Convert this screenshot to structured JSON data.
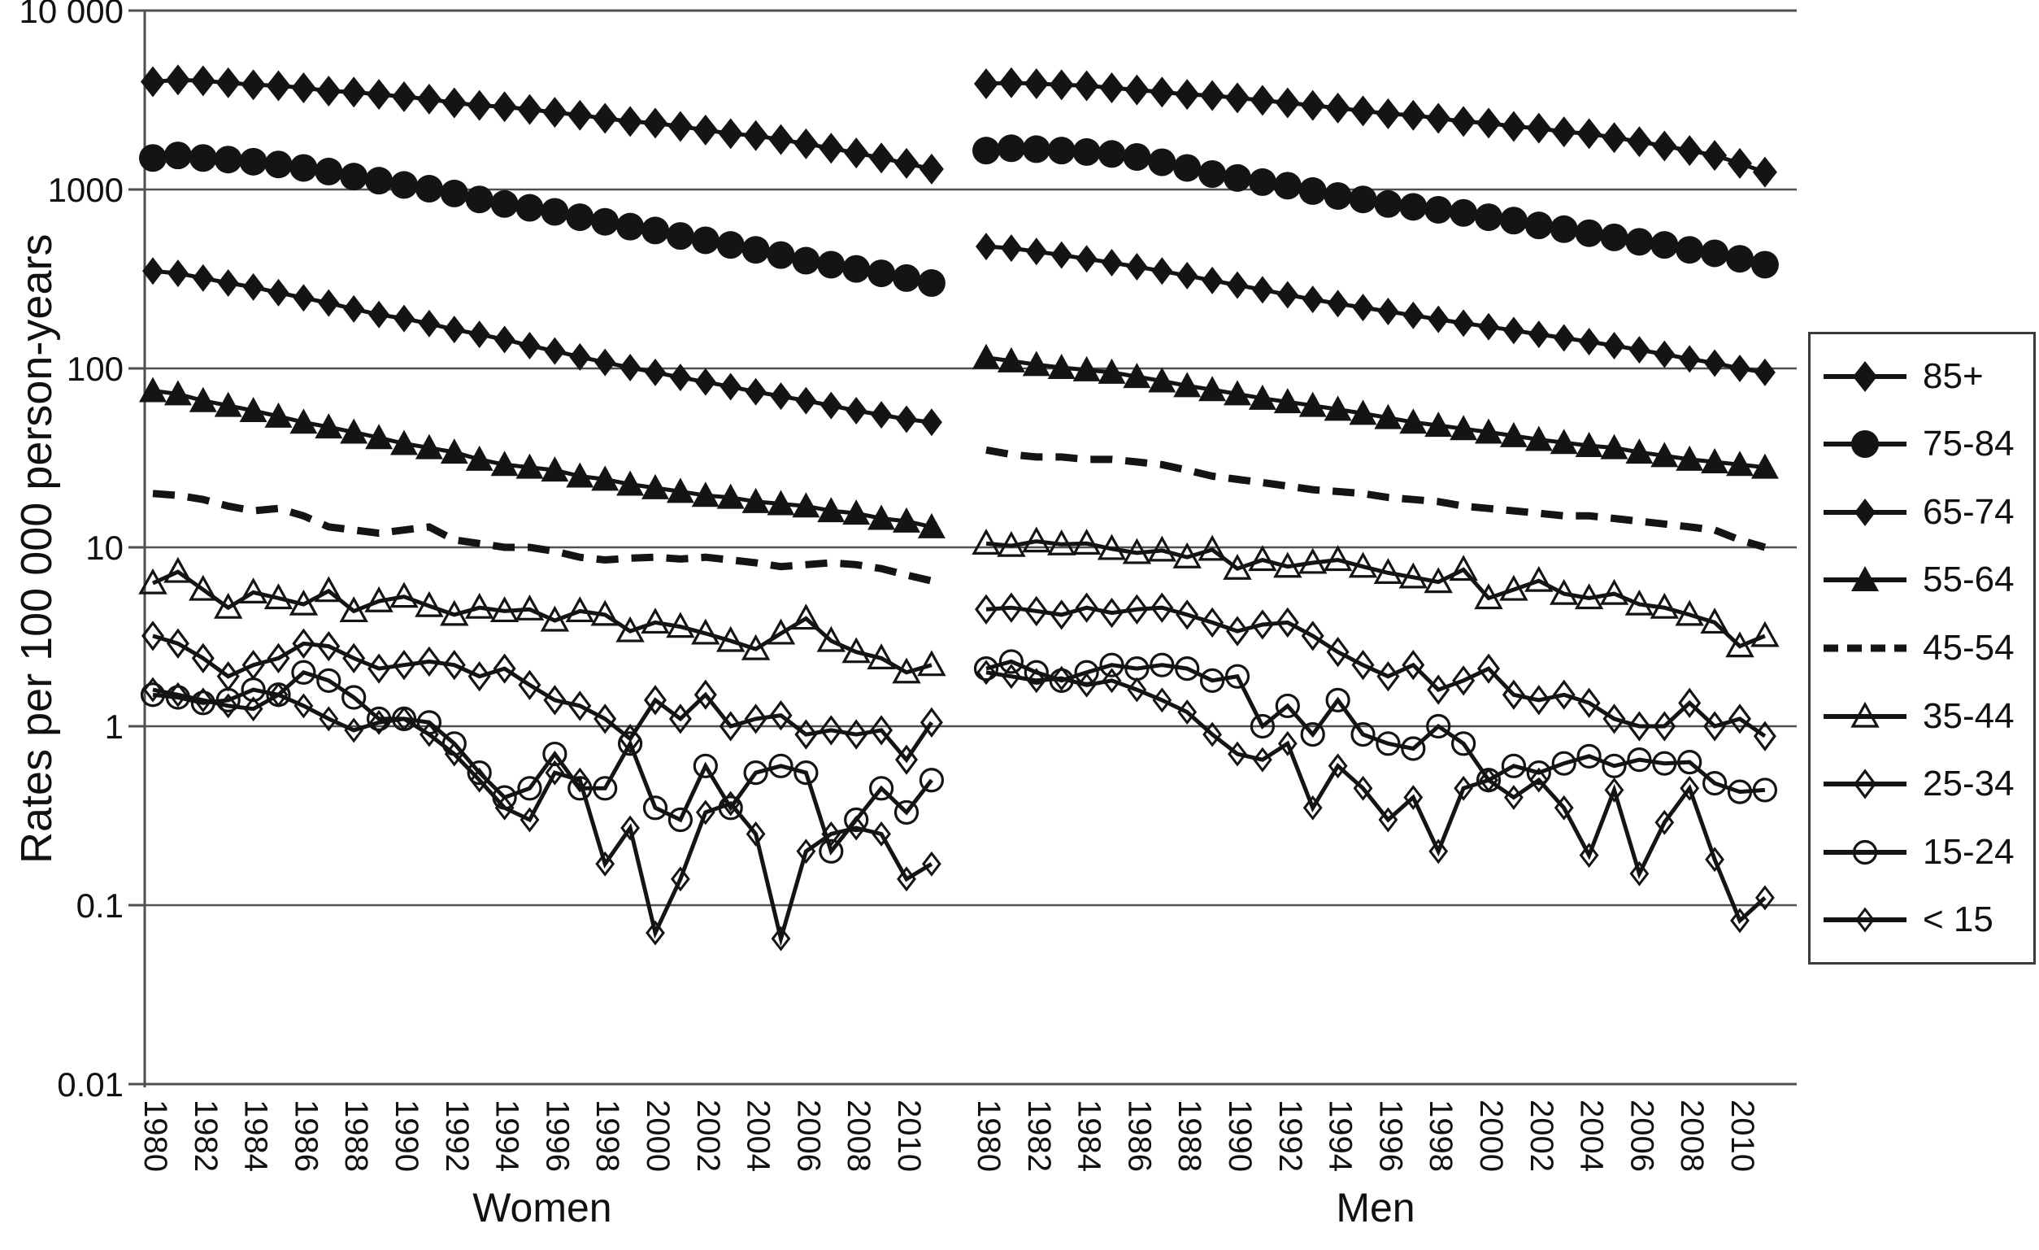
{
  "figure": {
    "type": "scientific-line-chart",
    "background": "#ffffff"
  },
  "colors": {
    "ink": "#141414",
    "grid": "#4f4f4f",
    "text": "#111111"
  },
  "legend": {
    "entries": [
      {
        "label": "85+",
        "marker": "diamond-filled"
      },
      {
        "label": "75-84",
        "marker": "circle-filled"
      },
      {
        "label": "65-74",
        "marker": "diamond-filled-small"
      },
      {
        "label": "55-64",
        "marker": "triangle-filled"
      },
      {
        "label": "45-54",
        "marker": "dashed-line"
      },
      {
        "label": "35-44",
        "marker": "triangle-open"
      },
      {
        "label": "25-34",
        "marker": "diamond-open"
      },
      {
        "label": "15-24",
        "marker": "circle-open"
      },
      {
        "label": "< 15",
        "marker": "diamond-open-small"
      }
    ]
  },
  "chart_data": {
    "type": "line",
    "yscale": "log",
    "ylabel": "Rates per 100 000 person-years",
    "ylim": [
      0.01,
      10000
    ],
    "grid": true,
    "legend_position": "right",
    "y_tick_values": [
      10000,
      1000,
      100,
      10,
      1,
      0.1,
      0.01
    ],
    "y_tick_labels": [
      "10 000",
      "1000",
      "100",
      "10",
      "1",
      "0.1",
      "0.01"
    ],
    "x": [
      1980,
      1981,
      1982,
      1983,
      1984,
      1985,
      1986,
      1987,
      1988,
      1989,
      1990,
      1991,
      1992,
      1993,
      1994,
      1995,
      1996,
      1997,
      1998,
      1999,
      2000,
      2001,
      2002,
      2003,
      2004,
      2005,
      2006,
      2007,
      2008,
      2009,
      2010,
      2011
    ],
    "x_ticks": [
      1980,
      1982,
      1984,
      1986,
      1988,
      1990,
      1992,
      1994,
      1996,
      1998,
      2000,
      2002,
      2004,
      2006,
      2008,
      2010
    ],
    "panels": [
      {
        "label": "Women",
        "series": [
          {
            "name": "85+",
            "marker": "diamond-filled",
            "values": [
              4000,
              4100,
              4050,
              3950,
              3850,
              3800,
              3700,
              3550,
              3500,
              3400,
              3300,
              3200,
              3050,
              2950,
              2900,
              2800,
              2700,
              2600,
              2500,
              2400,
              2350,
              2250,
              2150,
              2050,
              2000,
              1900,
              1800,
              1700,
              1600,
              1500,
              1400,
              1300
            ]
          },
          {
            "name": "75-84",
            "marker": "circle-filled",
            "values": [
              1500,
              1550,
              1500,
              1470,
              1430,
              1380,
              1320,
              1260,
              1180,
              1120,
              1060,
              1010,
              950,
              880,
              830,
              790,
              750,
              700,
              660,
              620,
              590,
              550,
              520,
              490,
              460,
              430,
              400,
              380,
              360,
              340,
              320,
              300
            ]
          },
          {
            "name": "65-74",
            "marker": "diamond-filled-small",
            "values": [
              350,
              340,
              320,
              300,
              285,
              265,
              248,
              232,
              215,
              200,
              190,
              178,
              165,
              155,
              145,
              134,
              125,
              116,
              108,
              101,
              95,
              89,
              84,
              79,
              74,
              70,
              66,
              62,
              58,
              55,
              52,
              50
            ]
          },
          {
            "name": "55-64",
            "marker": "triangle-filled",
            "values": [
              75,
              72,
              66,
              62,
              58,
              54,
              50,
              47,
              44,
              41,
              38,
              36,
              34,
              31,
              29,
              28,
              27,
              25,
              24,
              22.5,
              21.5,
              20.5,
              19.5,
              19,
              18,
              17.5,
              17,
              16,
              15.5,
              14.5,
              14,
              13
            ]
          },
          {
            "name": "45-54",
            "marker": "dashed-line",
            "values": [
              20,
              19.5,
              18.5,
              17,
              16,
              16.5,
              15,
              13,
              12.5,
              12,
              12.5,
              13,
              11,
              10.5,
              10,
              10,
              9.5,
              8.8,
              8.5,
              8.7,
              8.8,
              8.6,
              8.8,
              8.5,
              8.2,
              7.8,
              8,
              8.2,
              8,
              7.6,
              7,
              6.5
            ]
          },
          {
            "name": "35-44",
            "marker": "triangle-open",
            "values": [
              6.3,
              7.3,
              5.8,
              4.6,
              5.6,
              5.2,
              4.8,
              5.7,
              4.4,
              5.0,
              5.3,
              4.7,
              4.2,
              4.6,
              4.4,
              4.5,
              3.9,
              4.4,
              4.2,
              3.4,
              3.8,
              3.6,
              3.3,
              3.0,
              2.7,
              3.3,
              4.0,
              3.0,
              2.6,
              2.4,
              2.0,
              2.2
            ]
          },
          {
            "name": "25-34",
            "marker": "diamond-open",
            "values": [
              3.2,
              2.9,
              2.4,
              1.9,
              2.2,
              2.4,
              2.9,
              2.8,
              2.4,
              2.1,
              2.2,
              2.3,
              2.2,
              1.9,
              2.1,
              1.7,
              1.4,
              1.3,
              1.1,
              0.85,
              1.4,
              1.1,
              1.5,
              1.0,
              1.1,
              1.15,
              0.9,
              0.95,
              0.9,
              0.95,
              0.65,
              1.05
            ]
          },
          {
            "name": "15-24",
            "marker": "circle-open",
            "values": [
              1.5,
              1.45,
              1.35,
              1.4,
              1.6,
              1.5,
              2.0,
              1.8,
              1.45,
              1.1,
              1.1,
              1.05,
              0.8,
              0.55,
              0.4,
              0.45,
              0.7,
              0.45,
              0.45,
              0.8,
              0.35,
              0.3,
              0.6,
              0.35,
              0.55,
              0.6,
              0.55,
              0.2,
              0.3,
              0.45,
              0.33,
              0.5
            ]
          },
          {
            "name": "< 15",
            "marker": "diamond-open-small",
            "values": [
              1.6,
              1.5,
              1.4,
              1.3,
              1.25,
              1.5,
              1.3,
              1.1,
              0.95,
              1.05,
              1.1,
              0.9,
              0.7,
              0.5,
              0.35,
              0.3,
              0.55,
              0.5,
              0.17,
              0.27,
              0.07,
              0.14,
              0.33,
              0.37,
              0.25,
              0.065,
              0.2,
              0.25,
              0.27,
              0.25,
              0.14,
              0.17
            ]
          }
        ]
      },
      {
        "label": "Men",
        "series": [
          {
            "name": "85+",
            "marker": "diamond-filled",
            "values": [
              3900,
              3950,
              3900,
              3850,
              3800,
              3700,
              3600,
              3500,
              3400,
              3350,
              3250,
              3150,
              3050,
              2950,
              2850,
              2750,
              2650,
              2600,
              2500,
              2400,
              2350,
              2250,
              2200,
              2100,
              2050,
              1950,
              1850,
              1750,
              1650,
              1550,
              1400,
              1250
            ]
          },
          {
            "name": "75-84",
            "marker": "circle-filled",
            "values": [
              1650,
              1700,
              1680,
              1650,
              1620,
              1580,
              1520,
              1420,
              1320,
              1220,
              1160,
              1100,
              1050,
              980,
              920,
              880,
              830,
              800,
              770,
              740,
              700,
              670,
              630,
              600,
              570,
              540,
              510,
              490,
              460,
              440,
              410,
              380
            ]
          },
          {
            "name": "65-74",
            "marker": "diamond-filled-small",
            "values": [
              480,
              470,
              450,
              430,
              410,
              390,
              370,
              350,
              330,
              310,
              292,
              275,
              258,
              243,
              230,
              219,
              208,
              198,
              188,
              179,
              171,
              163,
              155,
              148,
              141,
              134,
              127,
              120,
              113,
              107,
              100,
              95
            ]
          },
          {
            "name": "55-64",
            "marker": "triangle-filled",
            "values": [
              115,
              110,
              105,
              101,
              98,
              95,
              90,
              85,
              80,
              76,
              72,
              68,
              65,
              62,
              59,
              56,
              53,
              50,
              48,
              46,
              44,
              42,
              40,
              38.5,
              37,
              36,
              34,
              32.5,
              31,
              30,
              29,
              28
            ]
          },
          {
            "name": "45-54",
            "marker": "dashed-line",
            "values": [
              35,
              33,
              32,
              32,
              31,
              31,
              30,
              29,
              27,
              25,
              24,
              23,
              22,
              21,
              20.5,
              20,
              19,
              18.5,
              18,
              17,
              16.5,
              16,
              15.5,
              15,
              15,
              14.5,
              14,
              13.5,
              13,
              12.5,
              11,
              10
            ]
          },
          {
            "name": "35-44",
            "marker": "triangle-open",
            "values": [
              10.5,
              10.2,
              10.8,
              10.4,
              10.5,
              9.8,
              9.3,
              9.6,
              8.8,
              9.7,
              7.6,
              8.5,
              7.8,
              8.2,
              8.5,
              7.8,
              7.2,
              6.8,
              6.4,
              7.5,
              5.2,
              5.8,
              6.5,
              5.5,
              5.2,
              5.5,
              4.8,
              4.6,
              4.2,
              3.8,
              2.8,
              3.2
            ]
          },
          {
            "name": "25-34",
            "marker": "diamond-open",
            "values": [
              4.5,
              4.6,
              4.4,
              4.2,
              4.6,
              4.3,
              4.5,
              4.6,
              4.2,
              3.8,
              3.4,
              3.7,
              3.8,
              3.2,
              2.6,
              2.2,
              1.9,
              2.2,
              1.6,
              1.8,
              2.1,
              1.5,
              1.4,
              1.5,
              1.35,
              1.1,
              1.0,
              1.0,
              1.35,
              1.0,
              1.1,
              0.88
            ]
          },
          {
            "name": "15-24",
            "marker": "circle-open",
            "values": [
              2.1,
              2.3,
              2.0,
              1.8,
              2.0,
              2.2,
              2.1,
              2.2,
              2.1,
              1.8,
              1.9,
              1.0,
              1.3,
              0.9,
              1.4,
              0.9,
              0.8,
              0.75,
              1.0,
              0.8,
              0.5,
              0.6,
              0.55,
              0.62,
              0.68,
              0.6,
              0.65,
              0.62,
              0.63,
              0.48,
              0.43,
              0.44
            ]
          },
          {
            "name": "< 15",
            "marker": "diamond-open-small",
            "values": [
              2.0,
              1.9,
              1.8,
              1.85,
              1.7,
              1.8,
              1.6,
              1.4,
              1.2,
              0.9,
              0.7,
              0.65,
              0.8,
              0.35,
              0.6,
              0.45,
              0.3,
              0.4,
              0.2,
              0.45,
              0.5,
              0.4,
              0.5,
              0.35,
              0.19,
              0.44,
              0.15,
              0.29,
              0.45,
              0.18,
              0.082,
              0.11
            ]
          }
        ]
      }
    ]
  }
}
